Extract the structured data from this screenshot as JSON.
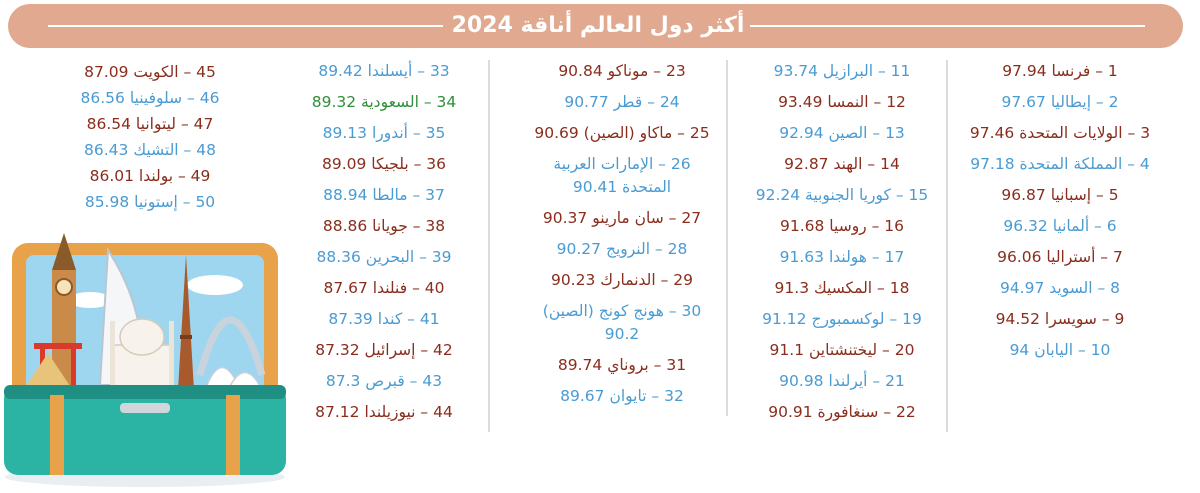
{
  "title": "أكثر دول العالم أناقة 2024",
  "colors": {
    "banner": "#e0a990",
    "brown": "#8a2d1c",
    "blue": "#4a9bd2",
    "green": "#2f8f3a"
  },
  "columns": [
    [
      {
        "text": "1 – فرنسا 97.94",
        "color": "brown"
      },
      {
        "text": "2 – إيطاليا 97.67",
        "color": "blue"
      },
      {
        "text": "3 – الولايات المتحدة 97.46",
        "color": "brown"
      },
      {
        "text": "4 – المملكة المتحدة 97.18",
        "color": "blue"
      },
      {
        "text": "5 – إسبانيا 96.87",
        "color": "brown"
      },
      {
        "text": "6 – ألمانيا 96.32",
        "color": "blue"
      },
      {
        "text": "7 – أستراليا 96.06",
        "color": "brown"
      },
      {
        "text": "8 – السويد 94.97",
        "color": "blue"
      },
      {
        "text": "9 – سويسرا 94.52",
        "color": "brown"
      },
      {
        "text": "10 – اليابان 94",
        "color": "blue"
      }
    ],
    [
      {
        "text": "11 – البرازيل 93.74",
        "color": "blue"
      },
      {
        "text": "12 – النمسا 93.49",
        "color": "brown"
      },
      {
        "text": "13 – الصين 92.94",
        "color": "blue"
      },
      {
        "text": "14 – الهند 92.87",
        "color": "brown"
      },
      {
        "text": "15 – كوريا الجنوبية 92.24",
        "color": "blue"
      },
      {
        "text": "16 – روسيا 91.68",
        "color": "brown"
      },
      {
        "text": "17 – هولندا 91.63",
        "color": "blue"
      },
      {
        "text": "18 – المكسيك 91.3",
        "color": "brown"
      },
      {
        "text": "19 – لوكسمبورج 91.12",
        "color": "blue"
      },
      {
        "text": "20 – ليختنشتاين 91.1",
        "color": "brown"
      },
      {
        "text": "21 – أيرلندا 90.98",
        "color": "blue"
      },
      {
        "text": "22 – سنغافورة 90.91",
        "color": "brown"
      }
    ],
    [
      {
        "text": "23 – موناكو 90.84",
        "color": "brown"
      },
      {
        "text": "24 – قطر 90.77",
        "color": "blue"
      },
      {
        "text": "25 – ماكاو (الصين) 90.69",
        "color": "brown"
      },
      {
        "text": "26 – الإمارات العربية المتحدة 90.41",
        "color": "blue"
      },
      {
        "text": "27 – سان مارينو 90.37",
        "color": "brown"
      },
      {
        "text": "28 – النرويج 90.27",
        "color": "blue"
      },
      {
        "text": "29 – الدنمارك 90.23",
        "color": "brown"
      },
      {
        "text": "30 – هونج كونج (الصين) 90.2",
        "color": "blue"
      },
      {
        "text": "31 – بروناي 89.74",
        "color": "brown"
      },
      {
        "text": "32 – تايوان 89.67",
        "color": "blue"
      }
    ],
    [
      {
        "text": "33 – أيسلندا 89.42",
        "color": "blue"
      },
      {
        "text": "34 – السعودية 89.32",
        "color": "green"
      },
      {
        "text": "35 – أندورا 89.13",
        "color": "blue"
      },
      {
        "text": "36 – بلجيكا 89.09",
        "color": "brown"
      },
      {
        "text": "37 – مالطا 88.94",
        "color": "blue"
      },
      {
        "text": "38 – جويانا 88.86",
        "color": "brown"
      },
      {
        "text": "39 – البحرين 88.36",
        "color": "blue"
      },
      {
        "text": "40 – فنلندا 87.67",
        "color": "brown"
      },
      {
        "text": "41 – كندا 87.39",
        "color": "blue"
      },
      {
        "text": "42 – إسرائيل 87.32",
        "color": "brown"
      },
      {
        "text": "43 – قبرص 87.3",
        "color": "blue"
      },
      {
        "text": "44 – نيوزيلندا 87.12",
        "color": "brown"
      }
    ],
    [
      {
        "text": "45 – الكويت 87.09",
        "color": "brown"
      },
      {
        "text": "46 – سلوفينيا 86.56",
        "color": "blue"
      },
      {
        "text": "47 – ليتوانيا 86.54",
        "color": "brown"
      },
      {
        "text": "48 – التشيك 86.43",
        "color": "blue"
      },
      {
        "text": "49 – بولندا 86.01",
        "color": "brown"
      },
      {
        "text": "50 – إستونيا 85.98",
        "color": "blue"
      }
    ]
  ]
}
